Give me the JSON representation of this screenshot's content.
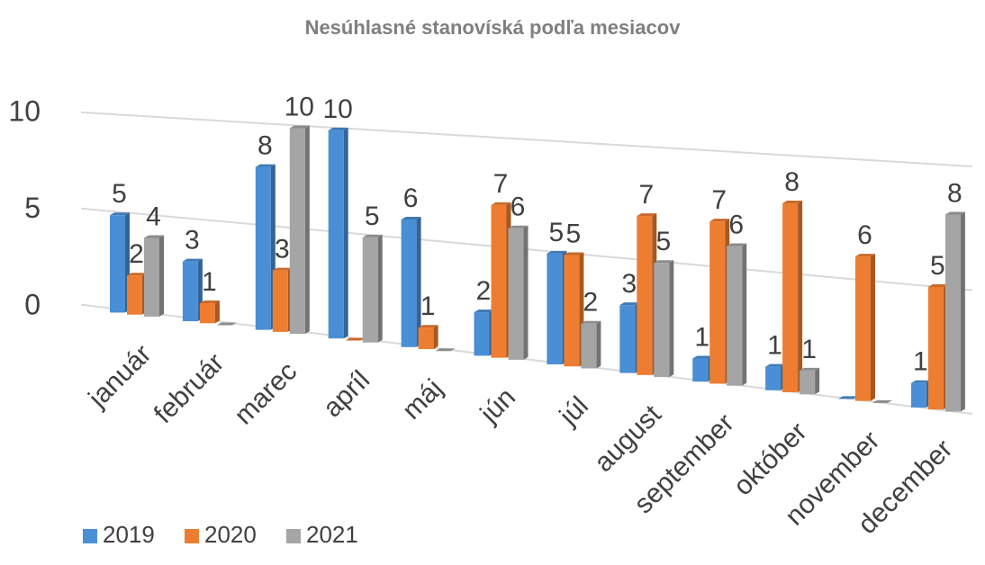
{
  "chart_data": {
    "type": "bar3d",
    "title": "Nesúhlasné stanovíská podľa mesiacov",
    "categories": [
      "január",
      "február",
      "marec",
      "apríl",
      "máj",
      "jún",
      "júl",
      "august",
      "september",
      "október",
      "november",
      "december"
    ],
    "series": [
      {
        "name": "2019",
        "color": "#4a8fd6",
        "values": [
          5,
          3,
          8,
          10,
          6,
          2,
          5,
          3,
          1,
          1,
          0,
          1
        ]
      },
      {
        "name": "2020",
        "color": "#ed7d31",
        "values": [
          2,
          1,
          3,
          0,
          1,
          7,
          5,
          7,
          7,
          8,
          6,
          5
        ]
      },
      {
        "name": "2021",
        "color": "#a5a5a5",
        "values": [
          4,
          0,
          10,
          5,
          0,
          6,
          2,
          5,
          6,
          1,
          0,
          8
        ]
      }
    ],
    "ylim": [
      0,
      10
    ],
    "yticks": [
      0,
      5,
      10
    ],
    "grid": true,
    "legend": "bottom-left"
  }
}
